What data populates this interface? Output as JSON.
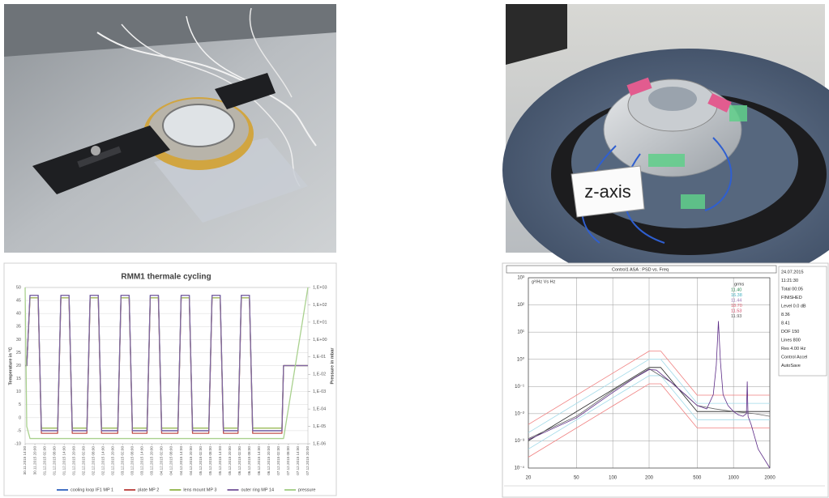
{
  "photo_label": "z-axis",
  "chart_data": [
    {
      "type": "line",
      "title": "RMM1 thermale cycling",
      "ylabel": "Temperature in °C",
      "y2label": "Pressure in mbar",
      "x": [
        "30.11.2015 14:00",
        "30.11.2015 15:00",
        "30.11.2015 17:00",
        "30.11.2015 22:00",
        "01.12.2015 00:00",
        "01.12.2015 10:00",
        "01.12.2015 12:00",
        "01.12.2015 17:00",
        "01.12.2015 19:00",
        "02.12.2015 04:00",
        "02.12.2015 06:00",
        "02.12.2015 11:00",
        "02.12.2015 13:00",
        "02.12.2015 23:00",
        "03.12.2015 01:00",
        "03.12.2015 06:00",
        "03.12.2015 08:00",
        "03.12.2015 17:00",
        "03.12.2015 19:00",
        "04.12.2015 00:00",
        "04.12.2015 02:00",
        "04.12.2015 12:00",
        "04.12.2015 14:00",
        "04.12.2015 19:00",
        "04.12.2015 21:00",
        "05.12.2015 07:00",
        "05.12.2015 09:00",
        "05.12.2015 14:00",
        "05.12.2015 16:00",
        "06.12.2015 01:00",
        "06.12.2015 03:00",
        "06.12.2015 08:00",
        "06.12.2015 10:00",
        "07.12.2015 04:00",
        "07.12.2015 05:00",
        "07.12.2015 20:00"
      ],
      "xlim": [
        "30.11.2015 14:00",
        "07.12.2015 20:00"
      ],
      "xticks": [
        "30.11.2015 14:00",
        "30.11.2015 20:00",
        "01.12.2015 02:00",
        "01.12.2015 08:00",
        "01.12.2015 14:00",
        "01.12.2015 20:00",
        "02.12.2015 02:00",
        "02.12.2015 08:00",
        "02.12.2015 14:00",
        "02.12.2015 20:00",
        "03.12.2015 02:00",
        "03.12.2015 08:00",
        "03.12.2015 14:00",
        "03.12.2015 20:00",
        "04.12.2015 02:00",
        "04.12.2015 08:00",
        "04.12.2015 14:00",
        "04.12.2015 20:00",
        "05.12.2015 02:00",
        "05.12.2015 08:00",
        "05.12.2015 14:00",
        "05.12.2015 20:00",
        "06.12.2015 02:00",
        "06.12.2015 08:00",
        "06.12.2015 14:00",
        "06.12.2015 20:00",
        "07.12.2015 02:00",
        "07.12.2015 08:00",
        "07.12.2015 14:00",
        "07.12.2015 20:00"
      ],
      "ylim": [
        -10,
        50
      ],
      "yticks": [
        -10,
        -5,
        0,
        5,
        10,
        15,
        20,
        25,
        30,
        35,
        40,
        45,
        50
      ],
      "y2lim": [
        1e-06,
        1000
      ],
      "y2log": true,
      "y2ticks": [
        {
          "value": 1e-06,
          "label": "1,E-06"
        },
        {
          "value": 1e-05,
          "label": "1,E-05"
        },
        {
          "value": 0.0001,
          "label": "1,E-04"
        },
        {
          "value": 0.001,
          "label": "1,E-03"
        },
        {
          "value": 0.01,
          "label": "1,E-02"
        },
        {
          "value": 0.1,
          "label": "1,E-01"
        },
        {
          "value": 1,
          "label": "1,E+00"
        },
        {
          "value": 10,
          "label": "1,E+01"
        },
        {
          "value": 100,
          "label": "1,E+02"
        },
        {
          "value": 1000,
          "label": "1,E+03"
        }
      ],
      "grid": true,
      "legend": "bottom",
      "series": [
        {
          "name": "cooling loop IF1 MP 1",
          "color": "#4472c4",
          "values": [
            20,
            20,
            47,
            47,
            -5,
            -5,
            47,
            47,
            -5,
            -5,
            47,
            47,
            -5,
            -5,
            47,
            47,
            -5,
            -5,
            47,
            47,
            -5,
            -5,
            47,
            47,
            -5,
            -5,
            47,
            47,
            -5,
            -5,
            47,
            47,
            -5,
            -5,
            20,
            20
          ]
        },
        {
          "name": "plate MP 2",
          "color": "#c0504d",
          "values": [
            20,
            20,
            46,
            46,
            -6,
            -6,
            46,
            46,
            -6,
            -6,
            46,
            46,
            -6,
            -6,
            46,
            46,
            -6,
            -6,
            46,
            46,
            -6,
            -6,
            46,
            46,
            -6,
            -6,
            46,
            46,
            -6,
            -6,
            46,
            46,
            -6,
            -6,
            20,
            20
          ]
        },
        {
          "name": "lens mount MP 3",
          "color": "#9bbb59",
          "values": [
            20,
            20,
            46,
            46,
            -4,
            -4,
            46,
            46,
            -4,
            -4,
            46,
            46,
            -4,
            -4,
            46,
            46,
            -4,
            -4,
            46,
            46,
            -4,
            -4,
            46,
            46,
            -4,
            -4,
            46,
            46,
            -4,
            -4,
            46,
            46,
            -4,
            -4,
            20,
            20
          ]
        },
        {
          "name": "outer ring MP 14",
          "color": "#8064a2",
          "values": [
            20,
            20,
            47,
            47,
            -5,
            -5,
            47,
            47,
            -5,
            -5,
            47,
            47,
            -5,
            -5,
            47,
            47,
            -5,
            -5,
            47,
            47,
            -5,
            -5,
            47,
            47,
            -5,
            -5,
            47,
            47,
            -5,
            -5,
            47,
            47,
            -5,
            -5,
            20,
            20
          ]
        },
        {
          "name": "pressure",
          "color": "#a9d18e",
          "axis": "y2",
          "values": [
            1000,
            1e-05,
            2e-06,
            2e-06,
            2e-06,
            2e-06,
            2e-06,
            2e-06,
            2e-06,
            2e-06,
            2e-06,
            2e-06,
            2e-06,
            2e-06,
            2e-06,
            2e-06,
            2e-06,
            2e-06,
            2e-06,
            2e-06,
            2e-06,
            2e-06,
            2e-06,
            2e-06,
            2e-06,
            2e-06,
            2e-06,
            2e-06,
            2e-06,
            2e-06,
            2e-06,
            2e-06,
            2e-06,
            2e-06,
            2e-06,
            1000
          ]
        }
      ]
    },
    {
      "type": "line",
      "title": "Control1 ASA : PSD vs. Freq",
      "ylabel": "g²/Hz Vs Hz",
      "xlog": true,
      "ylog": true,
      "xlim": [
        20,
        2000
      ],
      "xticks": [
        20,
        50,
        100,
        200,
        500,
        1000,
        2000
      ],
      "ylim": [
        0.0001,
        1000
      ],
      "yticks": [
        {
          "value": 0.0001,
          "label": "10⁻⁴"
        },
        {
          "value": 0.001,
          "label": "10⁻³"
        },
        {
          "value": 0.01,
          "label": "10⁻²"
        },
        {
          "value": 0.1,
          "label": "10⁻¹"
        },
        {
          "value": 1,
          "label": "10⁰"
        },
        {
          "value": 10,
          "label": "10¹"
        },
        {
          "value": 100,
          "label": "10²"
        },
        {
          "value": 1000,
          "label": "10³"
        }
      ],
      "grid": true,
      "xgrid": true,
      "series": [
        {
          "color": "#f08080",
          "x": [
            20,
            200,
            250,
            500,
            2000
          ],
          "values": [
            0.004,
            2,
            2,
            0.048,
            0.048
          ]
        },
        {
          "color": "#f08080",
          "x": [
            20,
            200,
            250,
            500,
            2000
          ],
          "values": [
            0.00025,
            0.125,
            0.125,
            0.003,
            0.003
          ]
        },
        {
          "color": "#9fd9e8",
          "x": [
            20,
            200,
            250,
            500,
            2000
          ],
          "values": [
            0.002,
            1,
            1,
            0.024,
            0.024
          ]
        },
        {
          "color": "#9fd9e8",
          "x": [
            20,
            200,
            250,
            500,
            2000
          ],
          "values": [
            0.0005,
            0.25,
            0.25,
            0.006,
            0.006
          ]
        },
        {
          "color": "#222222",
          "x": [
            20,
            200,
            250,
            500,
            2000
          ],
          "values": [
            0.001,
            0.5,
            0.5,
            0.012,
            0.012
          ]
        },
        {
          "color": "#666666",
          "x": [
            20,
            50,
            100,
            200,
            300,
            500,
            700,
            1000,
            1500,
            2000
          ],
          "values": [
            0.0012,
            0.008,
            0.07,
            0.45,
            0.15,
            0.02,
            0.015,
            0.012,
            0.01,
            0.008
          ]
        },
        {
          "color": "#5b2a86",
          "x": [
            20,
            30,
            50,
            100,
            150,
            200,
            230,
            300,
            400,
            500,
            600,
            680,
            720,
            750,
            780,
            820,
            900,
            1000,
            1100,
            1200,
            1280,
            1300,
            1320,
            1400,
            1600,
            2000
          ],
          "values": [
            0.0011,
            0.0025,
            0.007,
            0.06,
            0.2,
            0.42,
            0.4,
            0.15,
            0.05,
            0.02,
            0.015,
            0.05,
            0.6,
            25,
            0.8,
            0.05,
            0.02,
            0.012,
            0.009,
            0.008,
            0.01,
            0.15,
            0.008,
            0.004,
            0.0005,
            0.0001
          ]
        }
      ],
      "grms_header": "grms",
      "grms": [
        "11.40",
        "16.38",
        "11.44",
        "18.70",
        "11.53",
        "11.93"
      ],
      "grms_colors": [
        "#2e8b57",
        "#40b0c0",
        "#9a6fb0",
        "#e06070",
        "#d04060",
        "#555555"
      ],
      "panel": [
        "24.07.2015",
        "11:21:30",
        "Total 00:05",
        "FINISHED",
        "Level 0.0 dB",
        "8.36",
        "8.41",
        "DOF 150",
        "Lines 800",
        "Res 4.00 Hz",
        "Control Accel",
        "AutoSave"
      ]
    }
  ]
}
